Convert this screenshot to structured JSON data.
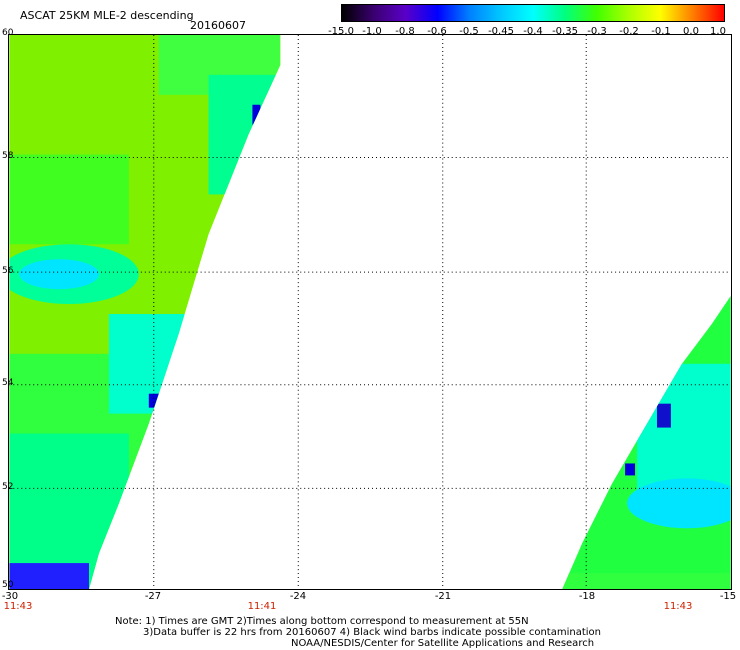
{
  "header": {
    "title": "ASCAT 25KM MLE-2 descending",
    "date": "20160607"
  },
  "colorbar": {
    "labels": [
      "-15.0",
      "-1.0",
      "-0.8",
      "-0.6",
      "-0.5",
      "-0.45",
      "-0.4",
      "-0.35",
      "-0.3",
      "-0.2",
      "-0.1",
      "0.0",
      "1.0"
    ],
    "colors": [
      "#000000",
      "#3a0070",
      "#5a00c8",
      "#0000ff",
      "#0080ff",
      "#00c8ff",
      "#00ffff",
      "#00ff80",
      "#40ff00",
      "#aaff00",
      "#ffff00",
      "#ff8000",
      "#ff0000"
    ]
  },
  "map": {
    "lat_labels": [
      "60",
      "58",
      "56",
      "54",
      "52",
      "50"
    ],
    "lon_labels": [
      "-30",
      "-27",
      "-24",
      "-21",
      "-18",
      "-15"
    ],
    "time_labels": [
      "11:43",
      "11:41",
      "11:43"
    ]
  },
  "notes": {
    "line1": "Note: 1) Times are GMT 2)Times along bottom correspond to measurement at 55N",
    "line2": "3)Data buffer is 22 hrs from 20160607 4) Black wind barbs indicate possible contamination",
    "line3": "NOAA/NESDIS/Center for Satellite Applications and Research"
  }
}
